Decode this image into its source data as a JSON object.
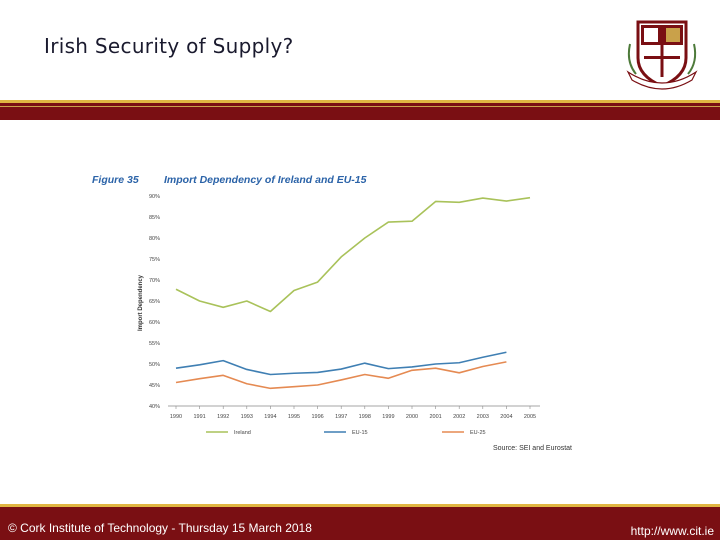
{
  "slide": {
    "title": "Irish Security of Supply?",
    "footer_left": "© Cork Institute of Technology - Thursday 15 March 2018",
    "footer_right": "http://www.cit.ie",
    "colors": {
      "bar": "#7a0f13",
      "bar_trim": "#e0b642"
    }
  },
  "chart_data": {
    "type": "line",
    "figure_label": "Figure 35",
    "title": "Import Dependency of Ireland and EU-15",
    "ylabel": "Import Dependency",
    "xlabel": "",
    "source": "Source: SEI and Eurostat",
    "ylim": [
      40,
      90
    ],
    "yticks": [
      "90%",
      "85%",
      "80%",
      "75%",
      "70%",
      "65%",
      "60%",
      "55%",
      "50%",
      "45%",
      "40%"
    ],
    "ytick_values": [
      90,
      85,
      80,
      75,
      70,
      65,
      60,
      55,
      50,
      45,
      40
    ],
    "categories": [
      "1990",
      "1991",
      "1992",
      "1993",
      "1994",
      "1995",
      "1996",
      "1997",
      "1998",
      "1999",
      "2000",
      "2001",
      "2002",
      "2003",
      "2004",
      "2005"
    ],
    "series": [
      {
        "name": "Ireland",
        "color": "#a9c25a",
        "values": [
          67.8,
          65.0,
          63.5,
          65.0,
          62.5,
          67.5,
          69.5,
          75.5,
          80.0,
          83.8,
          84.0,
          88.7,
          88.5,
          89.5,
          88.8,
          89.6
        ]
      },
      {
        "name": "EU-15",
        "color": "#3f7fb3",
        "values": [
          49.0,
          49.8,
          50.8,
          48.7,
          47.5,
          47.8,
          48.0,
          48.8,
          50.2,
          48.9,
          49.3,
          50.0,
          50.3,
          51.6,
          52.8,
          null
        ]
      },
      {
        "name": "EU-25",
        "color": "#e58a52",
        "values": [
          45.6,
          46.5,
          47.3,
          45.3,
          44.2,
          44.6,
          45.0,
          46.2,
          47.5,
          46.6,
          48.5,
          49.0,
          47.9,
          49.4,
          50.5,
          null
        ]
      }
    ],
    "legend_position": "bottom",
    "grid": false
  }
}
